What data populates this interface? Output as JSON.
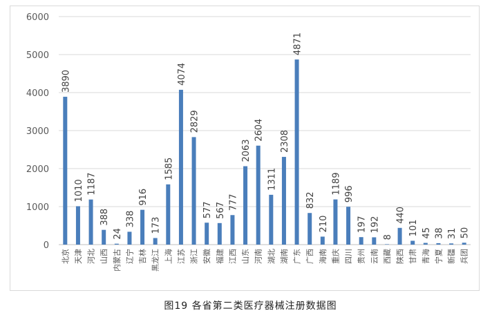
{
  "caption": "图19 各省第二类医疗器械注册数据图",
  "colors": {
    "bar": "#4a7ebb",
    "grid": "#d9d9d9",
    "text": "#595959"
  },
  "chart_data": {
    "type": "bar",
    "title": "",
    "xlabel": "",
    "ylabel": "",
    "ylim": [
      0,
      6000
    ],
    "yticks": [
      0,
      1000,
      2000,
      3000,
      4000,
      5000,
      6000
    ],
    "grid": true,
    "legend": "none",
    "categories": [
      "北京",
      "天津",
      "河北",
      "山西",
      "内蒙古",
      "辽宁",
      "吉林",
      "黑龙江",
      "上海",
      "江苏",
      "浙江",
      "安徽",
      "福建",
      "江西",
      "山东",
      "河南",
      "湖北",
      "湖南",
      "广东",
      "广西",
      "海南",
      "重庆",
      "四川",
      "贵州",
      "云南",
      "西藏",
      "陕西",
      "甘肃",
      "青海",
      "宁夏",
      "新疆",
      "兵团"
    ],
    "values": [
      3890,
      1010,
      1187,
      388,
      24,
      338,
      916,
      173,
      1585,
      4074,
      2829,
      577,
      567,
      777,
      2063,
      2604,
      1311,
      2308,
      4871,
      832,
      210,
      1189,
      996,
      197,
      192,
      8,
      440,
      101,
      45,
      38,
      31,
      50
    ],
    "data_labels": true,
    "label_rotation": -90
  }
}
